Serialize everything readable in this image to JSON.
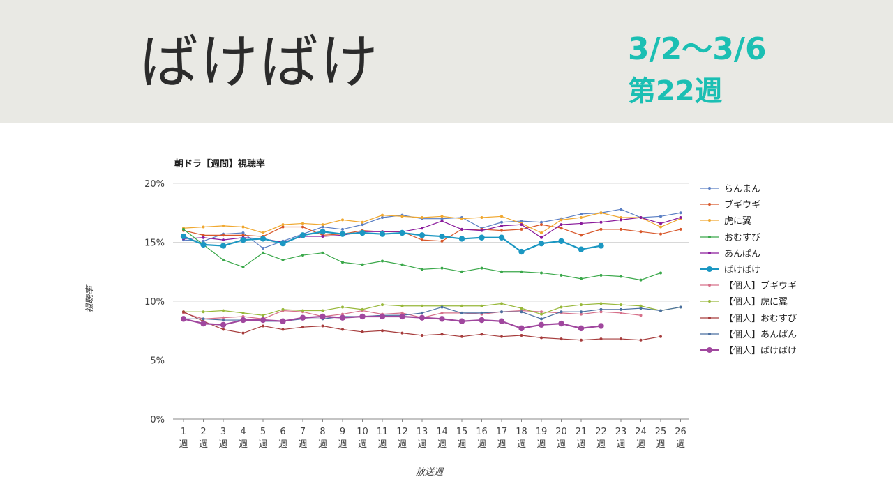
{
  "header": {
    "title": "ばけばけ",
    "date_range": "3/2〜3/6",
    "week": "第22週"
  },
  "colors": {
    "banner_bg": "#e9e9e4",
    "accent": "#1bbfb3"
  },
  "chart_data": {
    "type": "line",
    "title": "朝ドラ【週間】視聴率",
    "xlabel": "放送週",
    "ylabel": "視聴率",
    "ylim": [
      0,
      20
    ],
    "yticks": [
      "0%",
      "5%",
      "10%",
      "15%",
      "20%"
    ],
    "x": [
      "1週",
      "2週",
      "3週",
      "4週",
      "5週",
      "6週",
      "7週",
      "8週",
      "9週",
      "10週",
      "11週",
      "12週",
      "13週",
      "14週",
      "15週",
      "16週",
      "17週",
      "18週",
      "19週",
      "20週",
      "21週",
      "22週",
      "23週",
      "24週",
      "25週",
      "26週"
    ],
    "legend_position": "right",
    "grid": true,
    "series": [
      {
        "name": "らんまん",
        "color": "#5b7fc4",
        "marker": "small",
        "values": [
          15.2,
          15.1,
          15.7,
          15.8,
          14.5,
          15.1,
          15.7,
          16.3,
          16.1,
          16.5,
          17.1,
          17.3,
          17.0,
          17.0,
          17.1,
          16.2,
          16.7,
          16.8,
          16.7,
          17.0,
          17.4,
          17.5,
          17.8,
          17.1,
          17.2,
          17.5
        ]
      },
      {
        "name": "ブギウギ",
        "color": "#d8572a",
        "marker": "small",
        "values": [
          16.0,
          15.6,
          15.6,
          15.6,
          15.5,
          16.3,
          16.3,
          15.6,
          15.7,
          16.0,
          15.9,
          15.9,
          15.2,
          15.1,
          16.1,
          16.1,
          16.0,
          16.1,
          16.5,
          16.2,
          15.6,
          16.1,
          16.1,
          15.9,
          15.7,
          16.1
        ]
      },
      {
        "name": "虎に翼",
        "color": "#f0a830",
        "marker": "small",
        "values": [
          16.2,
          16.3,
          16.4,
          16.3,
          15.8,
          16.5,
          16.6,
          16.5,
          16.9,
          16.7,
          17.3,
          17.2,
          17.1,
          17.2,
          17.0,
          17.1,
          17.2,
          16.6,
          15.8,
          16.9,
          17.1,
          17.5,
          17.1,
          17.1,
          16.3,
          17.0
        ]
      },
      {
        "name": "おむすび",
        "color": "#3aa84a",
        "marker": "small",
        "values": [
          16.1,
          14.8,
          13.5,
          12.9,
          14.1,
          13.5,
          13.9,
          14.1,
          13.3,
          13.1,
          13.4,
          13.1,
          12.7,
          12.8,
          12.5,
          12.8,
          12.5,
          12.5,
          12.4,
          12.2,
          11.9,
          12.2,
          12.1,
          11.8,
          12.4,
          null
        ]
      },
      {
        "name": "あんぱん",
        "color": "#8a1a9b",
        "marker": "small",
        "values": [
          15.3,
          15.4,
          15.2,
          15.4,
          15.3,
          15.0,
          15.5,
          15.5,
          15.6,
          15.9,
          15.9,
          15.9,
          16.2,
          16.8,
          16.1,
          16.0,
          16.4,
          16.5,
          15.4,
          16.5,
          16.6,
          16.7,
          16.9,
          17.1,
          16.6,
          17.1
        ]
      },
      {
        "name": "ばけばけ",
        "color": "#1b97c2",
        "marker": "large",
        "values": [
          15.5,
          14.8,
          14.7,
          15.2,
          15.3,
          14.9,
          15.6,
          15.9,
          15.7,
          15.8,
          15.7,
          15.8,
          15.6,
          15.5,
          15.3,
          15.4,
          15.4,
          14.2,
          14.9,
          15.1,
          14.4,
          14.7,
          null,
          null,
          null,
          null
        ]
      },
      {
        "name": "【個人】ブギウギ",
        "color": "#d6708a",
        "marker": "small",
        "values": [
          9.0,
          8.5,
          8.6,
          8.7,
          8.5,
          9.2,
          9.1,
          8.7,
          8.9,
          9.2,
          8.9,
          9.0,
          8.6,
          9.0,
          9.0,
          8.9,
          9.1,
          9.2,
          9.1,
          9.0,
          8.9,
          9.1,
          9.0,
          8.8,
          null,
          null
        ]
      },
      {
        "name": "【個人】虎に翼",
        "color": "#98b83a",
        "marker": "small",
        "values": [
          9.1,
          9.1,
          9.2,
          9.0,
          8.8,
          9.3,
          9.2,
          9.2,
          9.5,
          9.3,
          9.7,
          9.6,
          9.6,
          9.6,
          9.6,
          9.6,
          9.8,
          9.4,
          8.9,
          9.5,
          9.7,
          9.8,
          9.7,
          9.6,
          9.2,
          9.5
        ]
      },
      {
        "name": "【個人】おむすび",
        "color": "#a63c3c",
        "marker": "small",
        "values": [
          9.1,
          8.3,
          7.6,
          7.3,
          7.9,
          7.6,
          7.8,
          7.9,
          7.6,
          7.4,
          7.5,
          7.3,
          7.1,
          7.2,
          7.0,
          7.2,
          7.0,
          7.1,
          6.9,
          6.8,
          6.7,
          6.8,
          6.8,
          6.7,
          7.0,
          null
        ]
      },
      {
        "name": "【個人】あんぱん",
        "color": "#4a6fa0",
        "marker": "small",
        "values": [
          8.5,
          8.5,
          8.4,
          8.4,
          8.3,
          8.3,
          8.5,
          8.5,
          8.7,
          8.7,
          8.8,
          8.8,
          9.0,
          9.5,
          9.0,
          9.0,
          9.1,
          9.1,
          8.5,
          9.1,
          9.1,
          9.3,
          9.3,
          9.4,
          9.2,
          9.5
        ]
      },
      {
        "name": "【個人】ばけばけ",
        "color": "#a0479e",
        "marker": "large",
        "values": [
          8.5,
          8.1,
          8.0,
          8.4,
          8.4,
          8.3,
          8.6,
          8.7,
          8.6,
          8.7,
          8.7,
          8.7,
          8.6,
          8.5,
          8.3,
          8.4,
          8.3,
          7.7,
          8.0,
          8.1,
          7.7,
          7.9,
          null,
          null,
          null,
          null
        ]
      }
    ]
  }
}
